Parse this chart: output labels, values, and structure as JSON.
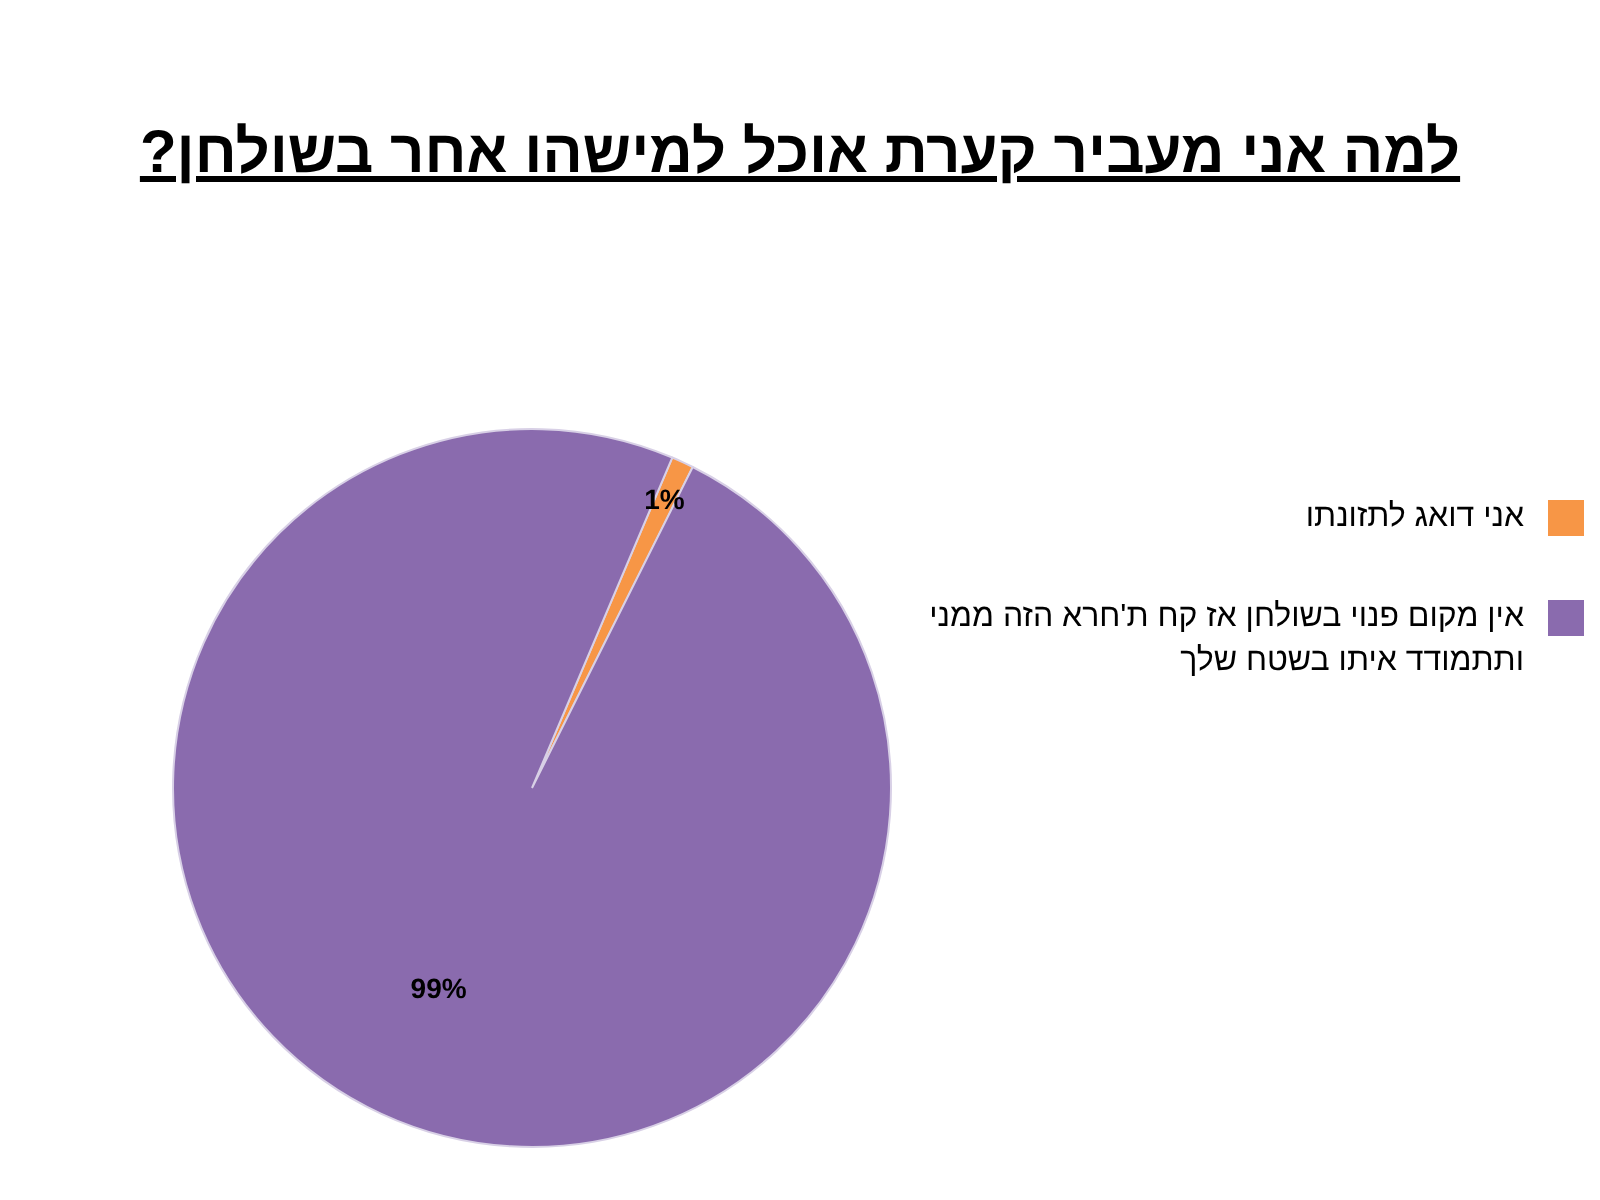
{
  "chart_data": {
    "type": "pie",
    "title": "למה אני מעביר קערת אוכל למישהו אחר בשולחן?",
    "categories": [
      "אני דואג לתזונתו",
      "אין מקום פנוי בשולחן אז קח ת'חרא הזה ממני ותתמודד איתו בשטח שלך"
    ],
    "values": [
      1,
      99
    ],
    "colors": [
      "#f79646",
      "#8a6bae"
    ],
    "value_labels": [
      "1%",
      "99%"
    ],
    "legend": "right"
  }
}
